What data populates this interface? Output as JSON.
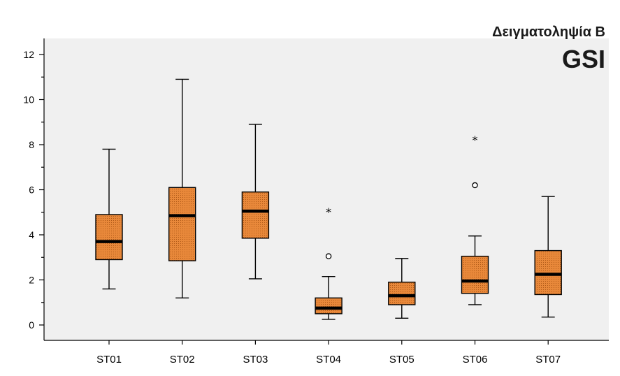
{
  "chart_data": {
    "type": "boxplot",
    "title": "GSI",
    "subtitle": "Δειγματοληψία Β",
    "xlabel": "",
    "ylabel": "",
    "ylim": [
      -0.7,
      12.5
    ],
    "yticks": [
      0,
      2,
      4,
      6,
      8,
      10,
      12
    ],
    "ytick_labels": [
      "0",
      "2",
      "4",
      "6",
      "8",
      "10",
      "12"
    ],
    "grid": false,
    "box_color": "#e8883a",
    "categories": [
      "ST01",
      "ST02",
      "ST03",
      "ST04",
      "ST05",
      "ST06",
      "ST07"
    ],
    "boxes": [
      {
        "category": "ST01",
        "min": 1.6,
        "q1": 2.9,
        "median": 3.7,
        "q3": 4.9,
        "max": 7.8,
        "outliers": [],
        "extremes": []
      },
      {
        "category": "ST02",
        "min": 1.2,
        "q1": 2.85,
        "median": 4.85,
        "q3": 6.1,
        "max": 10.9,
        "outliers": [],
        "extremes": []
      },
      {
        "category": "ST03",
        "min": 2.05,
        "q1": 3.85,
        "median": 5.05,
        "q3": 5.9,
        "max": 8.9,
        "outliers": [],
        "extremes": []
      },
      {
        "category": "ST04",
        "min": 0.25,
        "q1": 0.5,
        "median": 0.75,
        "q3": 1.2,
        "max": 2.15,
        "outliers": [
          3.05
        ],
        "extremes": [
          5.05
        ]
      },
      {
        "category": "ST05",
        "min": 0.3,
        "q1": 0.9,
        "median": 1.3,
        "q3": 1.9,
        "max": 2.95,
        "outliers": [],
        "extremes": []
      },
      {
        "category": "ST06",
        "min": 0.9,
        "q1": 1.4,
        "median": 1.95,
        "q3": 3.05,
        "max": 3.95,
        "outliers": [
          6.2
        ],
        "extremes": [
          8.25
        ]
      },
      {
        "category": "ST07",
        "min": 0.35,
        "q1": 1.35,
        "median": 2.25,
        "q3": 3.3,
        "max": 5.7,
        "outliers": [],
        "extremes": []
      }
    ]
  }
}
